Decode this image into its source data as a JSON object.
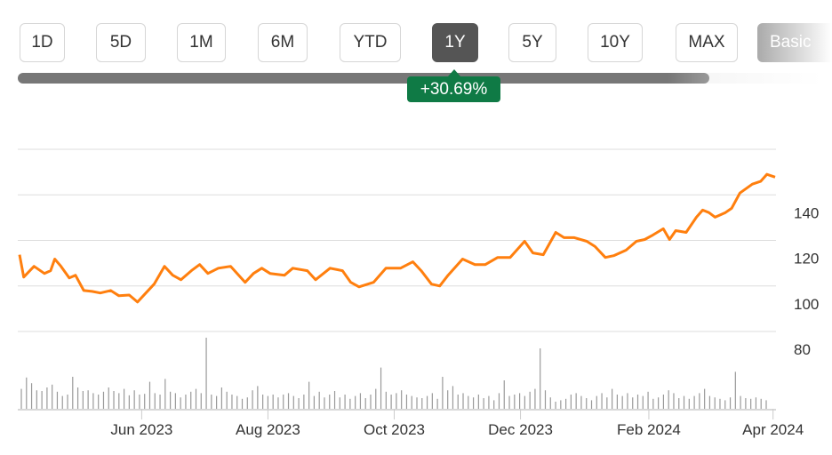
{
  "range_buttons": [
    {
      "label": "1D",
      "active": false
    },
    {
      "label": "5D",
      "active": false
    },
    {
      "label": "1M",
      "active": false
    },
    {
      "label": "6M",
      "active": false
    },
    {
      "label": "YTD",
      "active": false
    },
    {
      "label": "1Y",
      "active": true
    },
    {
      "label": "5Y",
      "active": false
    },
    {
      "label": "10Y",
      "active": false
    },
    {
      "label": "MAX",
      "active": false
    }
  ],
  "basic_button": "Basic",
  "change_badge": "+30.69%",
  "colors": {
    "line": "#ff7f0e",
    "badge": "#0f7a45",
    "active_button": "#555555",
    "volume": "#999999",
    "grid": "#dddddd"
  },
  "chart_data": {
    "type": "line",
    "title": "",
    "ylim": [
      80,
      160
    ],
    "yticks": [
      80,
      100,
      120,
      140
    ],
    "ytick_labels": [
      "80",
      "100",
      "120",
      "140"
    ],
    "xlim": [
      "2023-04-03",
      "2024-04-02"
    ],
    "xticks": [
      "2023-06-01",
      "2023-08-01",
      "2023-10-01",
      "2023-12-01",
      "2024-02-01",
      "2024-04-01"
    ],
    "xtick_labels": [
      "Jun 2023",
      "Aug 2023",
      "Oct 2023",
      "Dec 2023",
      "Feb 2024",
      "Apr 2024"
    ],
    "grid": true,
    "series": [
      {
        "values": [
          [
            "2023-04-03",
            113.7
          ],
          [
            "2023-04-05",
            103.9
          ],
          [
            "2023-04-08",
            106.7
          ],
          [
            "2023-04-10",
            108.6
          ],
          [
            "2023-04-15",
            105.5
          ],
          [
            "2023-04-18",
            106.7
          ],
          [
            "2023-04-20",
            111.8
          ],
          [
            "2023-04-23",
            108.6
          ],
          [
            "2023-04-27",
            103.5
          ],
          [
            "2023-04-30",
            104.7
          ],
          [
            "2023-05-04",
            98.0
          ],
          [
            "2023-05-08",
            97.6
          ],
          [
            "2023-05-12",
            96.9
          ],
          [
            "2023-05-17",
            98.0
          ],
          [
            "2023-05-21",
            95.7
          ],
          [
            "2023-05-26",
            96.0
          ],
          [
            "2023-05-30",
            92.9
          ],
          [
            "2023-06-03",
            96.9
          ],
          [
            "2023-06-07",
            100.8
          ],
          [
            "2023-06-12",
            108.6
          ],
          [
            "2023-06-16",
            104.7
          ],
          [
            "2023-06-20",
            102.7
          ],
          [
            "2023-06-25",
            106.7
          ],
          [
            "2023-06-29",
            109.4
          ],
          [
            "2023-07-03",
            105.5
          ],
          [
            "2023-07-08",
            107.8
          ],
          [
            "2023-07-14",
            108.6
          ],
          [
            "2023-07-21",
            101.6
          ],
          [
            "2023-07-25",
            105.5
          ],
          [
            "2023-07-29",
            107.8
          ],
          [
            "2023-08-02",
            105.5
          ],
          [
            "2023-08-09",
            104.7
          ],
          [
            "2023-08-13",
            107.8
          ],
          [
            "2023-08-20",
            106.7
          ],
          [
            "2023-08-24",
            102.7
          ],
          [
            "2023-08-31",
            107.8
          ],
          [
            "2023-09-06",
            106.7
          ],
          [
            "2023-09-10",
            101.6
          ],
          [
            "2023-09-14",
            99.6
          ],
          [
            "2023-09-21",
            101.6
          ],
          [
            "2023-09-27",
            107.8
          ],
          [
            "2023-10-04",
            107.8
          ],
          [
            "2023-10-10",
            110.6
          ],
          [
            "2023-10-14",
            106.7
          ],
          [
            "2023-10-19",
            100.8
          ],
          [
            "2023-10-23",
            100.0
          ],
          [
            "2023-10-27",
            104.7
          ],
          [
            "2023-11-03",
            111.8
          ],
          [
            "2023-11-09",
            109.4
          ],
          [
            "2023-11-14",
            109.4
          ],
          [
            "2023-11-20",
            112.5
          ],
          [
            "2023-11-26",
            112.5
          ],
          [
            "2023-12-03",
            119.6
          ],
          [
            "2023-12-07",
            114.5
          ],
          [
            "2023-12-12",
            113.7
          ],
          [
            "2023-12-18",
            123.5
          ],
          [
            "2023-12-22",
            121.2
          ],
          [
            "2023-12-27",
            121.2
          ],
          [
            "2024-01-02",
            119.6
          ],
          [
            "2024-01-06",
            117.3
          ],
          [
            "2024-01-11",
            112.5
          ],
          [
            "2024-01-15",
            113.3
          ],
          [
            "2024-01-21",
            115.7
          ],
          [
            "2024-01-26",
            119.6
          ],
          [
            "2024-01-30",
            120.4
          ],
          [
            "2024-02-03",
            122.4
          ],
          [
            "2024-02-08",
            125.1
          ],
          [
            "2024-02-11",
            120.4
          ],
          [
            "2024-02-14",
            124.3
          ],
          [
            "2024-02-19",
            123.5
          ],
          [
            "2024-02-24",
            130.2
          ],
          [
            "2024-02-27",
            133.3
          ],
          [
            "2024-03-01",
            132.2
          ],
          [
            "2024-03-04",
            130.2
          ],
          [
            "2024-03-09",
            132.2
          ],
          [
            "2024-03-12",
            134.1
          ],
          [
            "2024-03-16",
            140.8
          ],
          [
            "2024-03-22",
            144.7
          ],
          [
            "2024-03-26",
            145.9
          ],
          [
            "2024-03-29",
            149.0
          ],
          [
            "2024-04-02",
            147.8
          ]
        ]
      }
    ],
    "volume_relative": [
      28,
      44,
      36,
      26,
      25,
      30,
      34,
      24,
      18,
      20,
      45,
      30,
      25,
      26,
      22,
      20,
      24,
      30,
      25,
      22,
      28,
      19,
      26,
      20,
      21,
      38,
      22,
      20,
      42,
      24,
      22,
      16,
      20,
      24,
      28,
      22,
      100,
      20,
      18,
      30,
      24,
      20,
      18,
      14,
      16,
      26,
      32,
      20,
      18,
      20,
      16,
      20,
      22,
      18,
      15,
      20,
      38,
      18,
      24,
      16,
      20,
      25,
      16,
      20,
      14,
      18,
      22,
      15,
      20,
      28,
      58,
      24,
      20,
      22,
      26,
      20,
      18,
      16,
      15,
      18,
      22,
      14,
      45,
      26,
      32,
      20,
      22,
      18,
      16,
      20,
      15,
      18,
      12,
      22,
      40,
      18,
      20,
      22,
      18,
      24,
      28,
      85,
      26,
      16,
      10,
      12,
      14,
      20,
      22,
      18,
      15,
      12,
      18,
      22,
      16,
      28,
      20,
      18,
      22,
      16,
      20,
      18,
      24,
      14,
      16,
      20,
      26,
      22,
      15,
      18,
      14,
      18,
      22,
      28,
      18,
      16,
      14,
      12,
      16,
      52,
      18,
      15,
      14,
      16,
      14,
      12
    ]
  }
}
